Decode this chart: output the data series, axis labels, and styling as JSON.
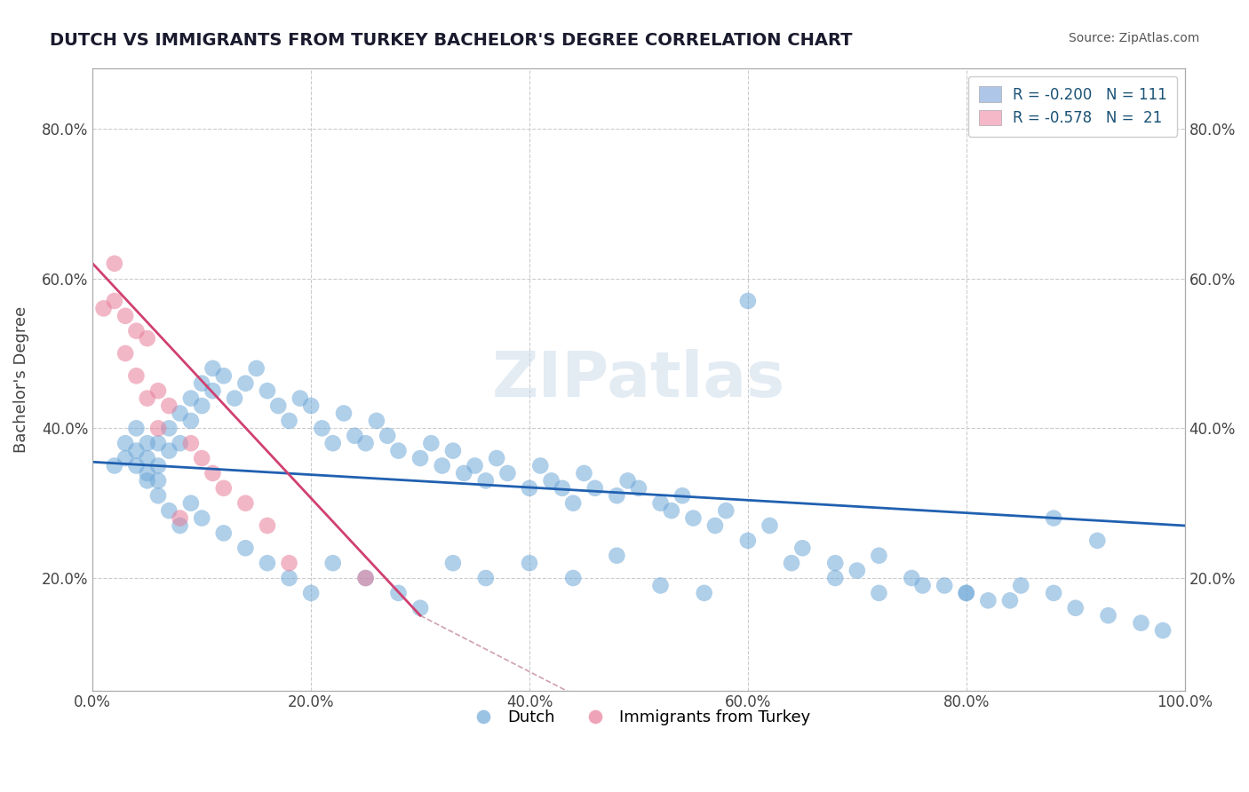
{
  "title": "DUTCH VS IMMIGRANTS FROM TURKEY BACHELOR'S DEGREE CORRELATION CHART",
  "source": "Source: ZipAtlas.com",
  "xlabel": "",
  "ylabel": "Bachelor's Degree",
  "watermark": "ZIPatlas",
  "legend_entries": [
    {
      "label": "R = -0.200   N = 111",
      "color": "#aec6e8"
    },
    {
      "label": "R = -0.578   N =  21",
      "color": "#f4b8c8"
    }
  ],
  "legend_labels_bottom": [
    "Dutch",
    "Immigrants from Turkey"
  ],
  "x_ticks": [
    "0.0%",
    "20.0%",
    "40.0%",
    "60.0%",
    "80.0%",
    "100.0%"
  ],
  "y_ticks": [
    "20.0%",
    "40.0%",
    "60.0%",
    "80.0%"
  ],
  "xlim": [
    0,
    1
  ],
  "ylim": [
    0.05,
    0.88
  ],
  "blue_scatter": {
    "x": [
      0.02,
      0.03,
      0.03,
      0.04,
      0.04,
      0.04,
      0.05,
      0.05,
      0.05,
      0.06,
      0.06,
      0.06,
      0.07,
      0.07,
      0.08,
      0.08,
      0.09,
      0.09,
      0.1,
      0.1,
      0.11,
      0.11,
      0.12,
      0.13,
      0.14,
      0.15,
      0.16,
      0.17,
      0.18,
      0.19,
      0.2,
      0.21,
      0.22,
      0.23,
      0.24,
      0.25,
      0.26,
      0.27,
      0.28,
      0.3,
      0.31,
      0.32,
      0.33,
      0.34,
      0.35,
      0.36,
      0.37,
      0.38,
      0.4,
      0.41,
      0.42,
      0.43,
      0.44,
      0.45,
      0.46,
      0.48,
      0.49,
      0.5,
      0.52,
      0.53,
      0.54,
      0.55,
      0.57,
      0.58,
      0.6,
      0.62,
      0.65,
      0.68,
      0.7,
      0.72,
      0.75,
      0.78,
      0.8,
      0.82,
      0.85,
      0.88,
      0.9,
      0.93,
      0.96,
      0.98,
      0.05,
      0.06,
      0.07,
      0.08,
      0.09,
      0.1,
      0.12,
      0.14,
      0.16,
      0.18,
      0.2,
      0.22,
      0.25,
      0.28,
      0.3,
      0.33,
      0.36,
      0.4,
      0.44,
      0.48,
      0.52,
      0.56,
      0.6,
      0.64,
      0.68,
      0.72,
      0.76,
      0.8,
      0.84,
      0.88,
      0.92
    ],
    "y": [
      0.35,
      0.38,
      0.36,
      0.4,
      0.37,
      0.35,
      0.38,
      0.36,
      0.34,
      0.38,
      0.35,
      0.33,
      0.4,
      0.37,
      0.42,
      0.38,
      0.44,
      0.41,
      0.46,
      0.43,
      0.48,
      0.45,
      0.47,
      0.44,
      0.46,
      0.48,
      0.45,
      0.43,
      0.41,
      0.44,
      0.43,
      0.4,
      0.38,
      0.42,
      0.39,
      0.38,
      0.41,
      0.39,
      0.37,
      0.36,
      0.38,
      0.35,
      0.37,
      0.34,
      0.35,
      0.33,
      0.36,
      0.34,
      0.32,
      0.35,
      0.33,
      0.32,
      0.3,
      0.34,
      0.32,
      0.31,
      0.33,
      0.32,
      0.3,
      0.29,
      0.31,
      0.28,
      0.27,
      0.29,
      0.25,
      0.27,
      0.24,
      0.22,
      0.21,
      0.23,
      0.2,
      0.19,
      0.18,
      0.17,
      0.19,
      0.18,
      0.16,
      0.15,
      0.14,
      0.13,
      0.33,
      0.31,
      0.29,
      0.27,
      0.3,
      0.28,
      0.26,
      0.24,
      0.22,
      0.2,
      0.18,
      0.22,
      0.2,
      0.18,
      0.16,
      0.22,
      0.2,
      0.22,
      0.2,
      0.23,
      0.19,
      0.18,
      0.57,
      0.22,
      0.2,
      0.18,
      0.19,
      0.18,
      0.17,
      0.28,
      0.25
    ]
  },
  "pink_scatter": {
    "x": [
      0.01,
      0.02,
      0.02,
      0.03,
      0.03,
      0.04,
      0.04,
      0.05,
      0.05,
      0.06,
      0.06,
      0.07,
      0.08,
      0.09,
      0.1,
      0.11,
      0.12,
      0.14,
      0.16,
      0.18,
      0.25
    ],
    "y": [
      0.56,
      0.62,
      0.57,
      0.55,
      0.5,
      0.53,
      0.47,
      0.52,
      0.44,
      0.45,
      0.4,
      0.43,
      0.28,
      0.38,
      0.36,
      0.34,
      0.32,
      0.3,
      0.27,
      0.22,
      0.2
    ]
  },
  "blue_line": {
    "x": [
      0.0,
      1.0
    ],
    "y": [
      0.355,
      0.27
    ]
  },
  "pink_line": {
    "x": [
      0.0,
      0.3
    ],
    "y": [
      0.62,
      0.15
    ]
  },
  "blue_scatter_color": "#6fa8d8",
  "pink_scatter_color": "#e87d9a",
  "blue_line_color": "#2060b0",
  "pink_line_color": "#d04070",
  "pink_dash_color": "#d0a0b0",
  "title_color": "#1a1a2e",
  "source_color": "#555555",
  "watermark_color": "#c8d8e8",
  "grid_color": "#cccccc",
  "axis_label_color": "#444444",
  "legend_text_color_r": "#1a5276",
  "legend_text_color_n": "#333333",
  "background_color": "#ffffff"
}
